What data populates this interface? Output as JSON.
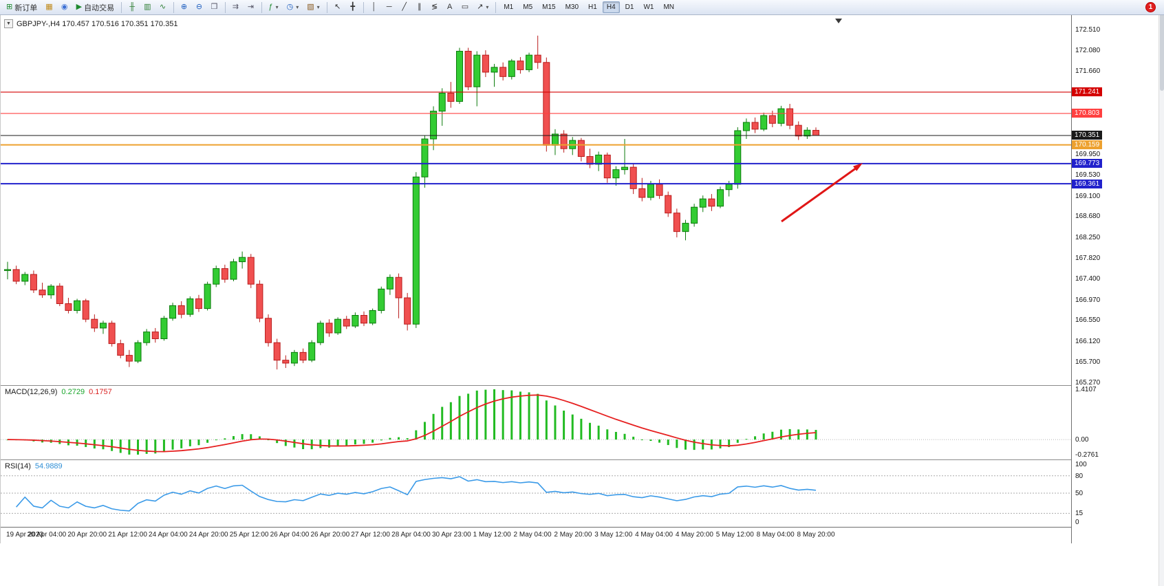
{
  "window": {
    "notification_badge": "1"
  },
  "toolbar": {
    "icon_groups": [
      [
        {
          "name": "new-order-button",
          "glyph": "⊞",
          "glyph_color": "#1f8a2f",
          "label": "新订单"
        },
        {
          "name": "chart-window-button",
          "glyph": "▦",
          "glyph_color": "#c08a1a"
        },
        {
          "name": "history-center-button",
          "glyph": "◉",
          "glyph_color": "#3b6fd4"
        },
        {
          "name": "auto-trading-button",
          "glyph": "▶",
          "glyph_color": "#1f8a2f",
          "label": "自动交易"
        }
      ],
      [
        {
          "name": "bar-chart-type-button",
          "glyph": "╫",
          "glyph_color": "#2e7d32"
        },
        {
          "name": "candlestick-type-button",
          "glyph": "▥",
          "glyph_color": "#2e7d32"
        },
        {
          "name": "line-chart-type-button",
          "glyph": "∿",
          "glyph_color": "#2e7d32"
        }
      ],
      [
        {
          "name": "zoom-in-button",
          "glyph": "⊕",
          "glyph_color": "#1f5fbf"
        },
        {
          "name": "zoom-out-button",
          "glyph": "⊖",
          "glyph_color": "#1f5fbf"
        },
        {
          "name": "tile-windows-button",
          "glyph": "❒",
          "glyph_color": "#556"
        }
      ],
      [
        {
          "name": "auto-scroll-button",
          "glyph": "⇉",
          "glyph_color": "#556"
        },
        {
          "name": "chart-shift-button",
          "glyph": "⇥",
          "glyph_color": "#556"
        }
      ],
      [
        {
          "name": "indicators-button",
          "glyph": "ƒ",
          "glyph_color": "#1f8a2f",
          "caret": true
        },
        {
          "name": "periods-button",
          "glyph": "◷",
          "glyph_color": "#1f5fbf",
          "caret": true
        },
        {
          "name": "templates-button",
          "glyph": "▧",
          "glyph_color": "#8a5a1f",
          "caret": true
        }
      ],
      [
        {
          "name": "cursor-tool-button",
          "glyph": "↖",
          "glyph_color": "#333"
        },
        {
          "name": "crosshair-tool-button",
          "glyph": "╋",
          "glyph_color": "#333"
        }
      ],
      [
        {
          "name": "vertical-line-tool-button",
          "glyph": "│",
          "glyph_color": "#333"
        },
        {
          "name": "horizontal-line-tool-button",
          "glyph": "─",
          "glyph_color": "#333"
        },
        {
          "name": "trendline-tool-button",
          "glyph": "╱",
          "glyph_color": "#333"
        },
        {
          "name": "channel-tool-button",
          "glyph": "∥",
          "glyph_color": "#333"
        },
        {
          "name": "fibonacci-tool-button",
          "glyph": "≶",
          "glyph_color": "#333"
        },
        {
          "name": "text-tool-button",
          "glyph": "A",
          "glyph_color": "#333"
        },
        {
          "name": "label-tool-button",
          "glyph": "▭",
          "glyph_color": "#333"
        },
        {
          "name": "arrows-tool-button",
          "glyph": "↗",
          "glyph_color": "#333",
          "caret": true
        }
      ]
    ],
    "timeframes": [
      "M1",
      "M5",
      "M15",
      "M30",
      "H1",
      "H4",
      "D1",
      "W1",
      "MN"
    ],
    "active_timeframe": "H4"
  },
  "chart_data": {
    "type": "candlestick",
    "symbol": "GBPJPY-",
    "period": "H4",
    "title": "GBPJPY-,H4  170.457 170.516 170.351 170.351",
    "ylim": [
      165.27,
      172.51
    ],
    "up_color": "#33cc33",
    "up_border": "#0a7a0a",
    "down_color": "#f05050",
    "down_border": "#b91c1c",
    "price_axis_labels": [
      "172.510",
      "172.080",
      "171.660",
      "169.950",
      "169.530",
      "169.100",
      "168.680",
      "168.250",
      "167.820",
      "167.400",
      "166.970",
      "166.550",
      "166.120",
      "165.700",
      "165.270"
    ],
    "hlines": [
      {
        "price": 171.241,
        "label": "171.241",
        "color": "#d40000",
        "width": 1.2
      },
      {
        "price": 170.803,
        "label": "170.803",
        "color": "#ff4040",
        "width": 1.2
      },
      {
        "price": 170.351,
        "label": "170.351",
        "color": "#1a1a1a",
        "width": 1
      },
      {
        "price": 170.159,
        "label": "170.159",
        "color": "#eda12f",
        "width": 2
      },
      {
        "price": 169.773,
        "label": "169.773",
        "color": "#2121cc",
        "width": 2
      },
      {
        "price": 169.361,
        "label": "169.361",
        "color": "#2121cc",
        "width": 2
      }
    ],
    "ohlc": [
      [
        167.58,
        167.76,
        167.4,
        167.6
      ],
      [
        167.6,
        167.68,
        167.3,
        167.36
      ],
      [
        167.36,
        167.55,
        167.28,
        167.5
      ],
      [
        167.5,
        167.58,
        167.12,
        167.18
      ],
      [
        167.18,
        167.33,
        167.02,
        167.08
      ],
      [
        167.08,
        167.3,
        167.0,
        167.26
      ],
      [
        167.26,
        167.32,
        166.85,
        166.9
      ],
      [
        166.9,
        167.02,
        166.7,
        166.76
      ],
      [
        166.76,
        167.0,
        166.7,
        166.96
      ],
      [
        166.96,
        167.0,
        166.52,
        166.58
      ],
      [
        166.58,
        166.68,
        166.32,
        166.4
      ],
      [
        166.4,
        166.55,
        166.28,
        166.5
      ],
      [
        166.5,
        166.55,
        166.02,
        166.08
      ],
      [
        166.08,
        166.16,
        165.78,
        165.84
      ],
      [
        165.84,
        165.95,
        165.6,
        165.72
      ],
      [
        165.72,
        166.15,
        165.68,
        166.1
      ],
      [
        166.1,
        166.38,
        166.04,
        166.32
      ],
      [
        166.32,
        166.4,
        166.1,
        166.18
      ],
      [
        166.18,
        166.65,
        166.14,
        166.6
      ],
      [
        166.6,
        166.92,
        166.55,
        166.86
      ],
      [
        166.86,
        166.95,
        166.6,
        166.68
      ],
      [
        166.68,
        167.05,
        166.63,
        167.0
      ],
      [
        167.0,
        167.08,
        166.73,
        166.8
      ],
      [
        166.8,
        167.35,
        166.76,
        167.3
      ],
      [
        167.3,
        167.68,
        167.24,
        167.62
      ],
      [
        167.62,
        167.7,
        167.33,
        167.4
      ],
      [
        167.4,
        167.82,
        167.36,
        167.76
      ],
      [
        167.76,
        167.97,
        167.62,
        167.85
      ],
      [
        167.85,
        167.92,
        167.22,
        167.3
      ],
      [
        167.3,
        167.38,
        166.52,
        166.6
      ],
      [
        166.6,
        166.68,
        166.02,
        166.1
      ],
      [
        166.1,
        166.18,
        165.55,
        165.74
      ],
      [
        165.74,
        165.84,
        165.58,
        165.68
      ],
      [
        165.68,
        165.95,
        165.62,
        165.9
      ],
      [
        165.9,
        165.98,
        165.68,
        165.74
      ],
      [
        165.74,
        166.15,
        165.7,
        166.1
      ],
      [
        166.1,
        166.55,
        166.05,
        166.5
      ],
      [
        166.5,
        166.58,
        166.22,
        166.3
      ],
      [
        166.3,
        166.62,
        166.26,
        166.58
      ],
      [
        166.58,
        166.65,
        166.38,
        166.44
      ],
      [
        166.44,
        166.72,
        166.4,
        166.66
      ],
      [
        166.66,
        166.74,
        166.44,
        166.5
      ],
      [
        166.5,
        166.8,
        166.46,
        166.76
      ],
      [
        166.76,
        167.25,
        166.7,
        167.2
      ],
      [
        167.2,
        167.5,
        167.08,
        167.44
      ],
      [
        167.44,
        167.52,
        166.6,
        167.02
      ],
      [
        167.02,
        167.12,
        166.35,
        166.48
      ],
      [
        166.48,
        169.6,
        166.4,
        169.5
      ],
      [
        169.5,
        170.35,
        169.28,
        170.28
      ],
      [
        170.28,
        170.95,
        170.05,
        170.85
      ],
      [
        170.85,
        171.32,
        170.55,
        171.22
      ],
      [
        171.22,
        171.45,
        170.92,
        171.05
      ],
      [
        171.05,
        172.15,
        171.0,
        172.08
      ],
      [
        172.08,
        172.15,
        171.28,
        171.35
      ],
      [
        171.35,
        172.08,
        170.95,
        172.0
      ],
      [
        172.0,
        172.1,
        171.55,
        171.65
      ],
      [
        171.65,
        171.82,
        171.35,
        171.75
      ],
      [
        171.75,
        171.85,
        171.48,
        171.56
      ],
      [
        171.56,
        171.92,
        171.5,
        171.88
      ],
      [
        171.88,
        171.96,
        171.62,
        171.7
      ],
      [
        171.7,
        172.05,
        171.65,
        172.0
      ],
      [
        172.0,
        172.4,
        171.72,
        171.85
      ],
      [
        171.85,
        171.95,
        170.02,
        170.15
      ],
      [
        170.15,
        170.48,
        169.95,
        170.38
      ],
      [
        170.38,
        170.46,
        170.0,
        170.08
      ],
      [
        170.08,
        170.32,
        169.95,
        170.25
      ],
      [
        170.25,
        170.3,
        169.82,
        169.92
      ],
      [
        169.92,
        170.08,
        169.68,
        169.76
      ],
      [
        169.76,
        170.02,
        169.62,
        169.95
      ],
      [
        169.95,
        170.0,
        169.38,
        169.48
      ],
      [
        169.48,
        169.72,
        169.32,
        169.65
      ],
      [
        169.65,
        170.28,
        169.55,
        169.7
      ],
      [
        169.7,
        169.78,
        169.15,
        169.26
      ],
      [
        169.26,
        169.48,
        169.0,
        169.08
      ],
      [
        169.08,
        169.42,
        169.02,
        169.35
      ],
      [
        169.35,
        169.45,
        169.05,
        169.12
      ],
      [
        169.12,
        169.2,
        168.68,
        168.76
      ],
      [
        168.76,
        168.85,
        168.26,
        168.38
      ],
      [
        168.38,
        168.62,
        168.2,
        168.55
      ],
      [
        168.55,
        168.95,
        168.48,
        168.88
      ],
      [
        168.88,
        169.12,
        168.78,
        169.05
      ],
      [
        169.05,
        169.15,
        168.8,
        168.9
      ],
      [
        168.9,
        169.3,
        168.86,
        169.24
      ],
      [
        169.24,
        169.42,
        169.1,
        169.35
      ],
      [
        169.35,
        170.52,
        169.26,
        170.45
      ],
      [
        170.45,
        170.7,
        170.28,
        170.62
      ],
      [
        170.62,
        170.72,
        170.4,
        170.48
      ],
      [
        170.48,
        170.82,
        170.44,
        170.76
      ],
      [
        170.76,
        170.86,
        170.52,
        170.6
      ],
      [
        170.6,
        170.96,
        170.54,
        170.9
      ],
      [
        170.9,
        171.0,
        170.48,
        170.56
      ],
      [
        170.56,
        170.64,
        170.26,
        170.34
      ],
      [
        170.34,
        170.52,
        170.28,
        170.46
      ],
      [
        170.457,
        170.516,
        170.351,
        170.351
      ]
    ],
    "time_labels": [
      "19 Apr 2023",
      "20 Apr 04:00",
      "20 Apr 20:00",
      "21 Apr 12:00",
      "24 Apr 04:00",
      "24 Apr 20:00",
      "25 Apr 12:00",
      "26 Apr 04:00",
      "26 Apr 20:00",
      "27 Apr 12:00",
      "28 Apr 04:00",
      "30 Apr 23:00",
      "1 May 12:00",
      "2 May 04:00",
      "2 May 20:00",
      "3 May 12:00",
      "4 May 04:00",
      "4 May 20:00",
      "5 May 12:00",
      "8 May 04:00",
      "8 May 20:00"
    ],
    "arrow_annotation": {
      "color": "#e01616"
    },
    "indicators": {
      "macd": {
        "label": "MACD(12,26,9)",
        "value_main": "0.2729",
        "value_signal": "0.1757",
        "axis_max": "1.4107",
        "axis_zero": "0.00",
        "axis_min": "-0.2761",
        "histogram_color": "#22bb22",
        "signal_color": "#e62020",
        "params": [
          12,
          26,
          9
        ]
      },
      "rsi": {
        "label": "RSI(14)",
        "value": "54.9889",
        "period": 14,
        "levels": [
          80,
          50,
          15
        ],
        "axis_labels": [
          "100",
          "80",
          "50",
          "15",
          "0"
        ],
        "line_color": "#3a9ae8"
      }
    }
  }
}
